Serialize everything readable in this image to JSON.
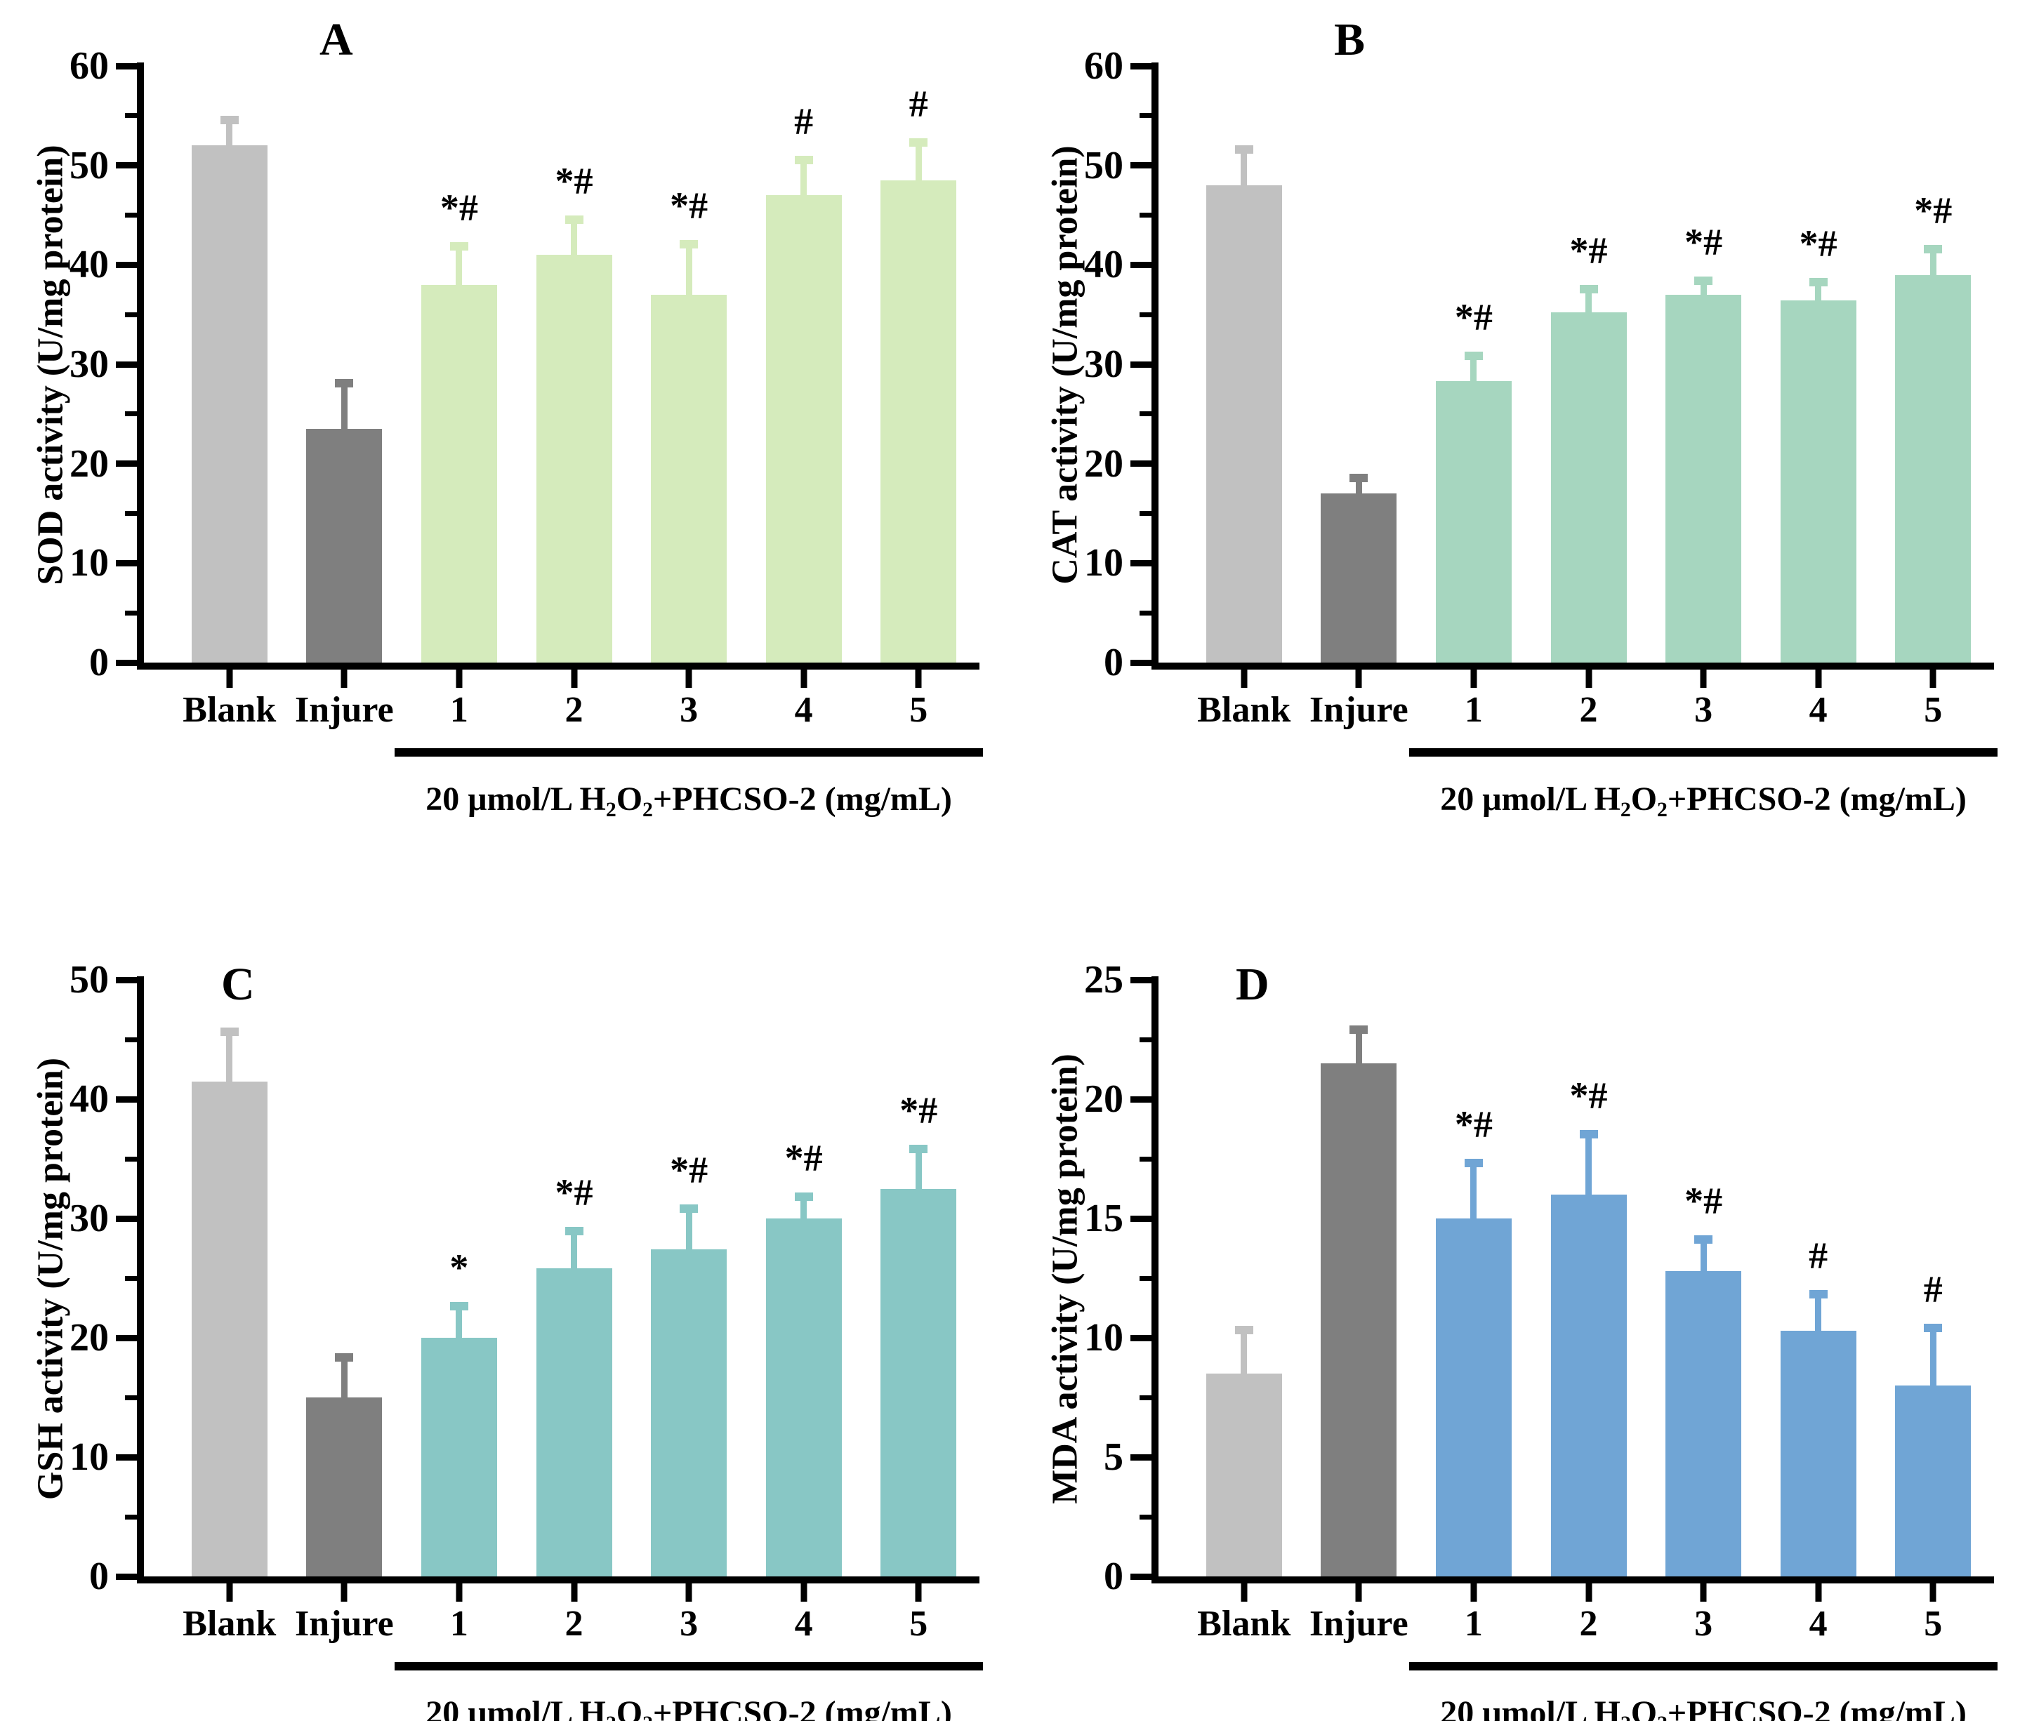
{
  "figure_title": "",
  "group_axis": {
    "label": "20 μmol/L H2O2+PHCSO-2 (mg/mL)",
    "label_parts": [
      [
        "20 μmol/L H",
        0
      ],
      [
        "2",
        1
      ],
      [
        "O",
        0
      ],
      [
        "2",
        1
      ],
      [
        "+PHCSO-2 (mg/mL)",
        0
      ]
    ],
    "span_categories": [
      "1",
      "5"
    ]
  },
  "colors": {
    "blank_bar": "#c1c1c1",
    "injure_bar": "#7f7f7f",
    "panel_a_bar": "#d5ebbc",
    "panel_b_bar": "#a6d6bf",
    "panel_c_bar": "#88c7c5",
    "panel_d_bar": "#70a5d5",
    "axis": "#000000"
  },
  "chart_data": [
    {
      "type": "bar",
      "panel_letter": "A",
      "title": "",
      "xlabel": "",
      "ylabel": "SOD activity (U/mg protein)",
      "ylim": [
        0,
        60
      ],
      "ytick_interval": 10,
      "yminor_interval": 5,
      "grid": false,
      "legend": "none",
      "categories": [
        "Blank",
        "Injure",
        "1",
        "2",
        "3",
        "4",
        "5"
      ],
      "values": [
        52,
        23.5,
        38,
        41,
        37,
        47,
        48.5
      ],
      "errors": [
        3,
        5,
        4.3,
        4,
        5.5,
        4,
        4.2
      ],
      "significance": [
        "",
        "",
        "*#",
        "*#",
        "*#",
        "#",
        "#"
      ],
      "bar_colors": [
        "#c1c1c1",
        "#7f7f7f",
        "#d5ebbc",
        "#d5ebbc",
        "#d5ebbc",
        "#d5ebbc",
        "#d5ebbc"
      ]
    },
    {
      "type": "bar",
      "panel_letter": "B",
      "title": "",
      "xlabel": "",
      "ylabel": "CAT activity (U/mg protein)",
      "ylim": [
        0,
        60
      ],
      "ytick_interval": 10,
      "yminor_interval": 5,
      "grid": false,
      "legend": "none",
      "categories": [
        "Blank",
        "Injure",
        "1",
        "2",
        "3",
        "4",
        "5"
      ],
      "values": [
        48,
        17,
        28.3,
        35.2,
        37,
        36.4,
        39
      ],
      "errors": [
        4,
        2,
        3,
        2.8,
        1.8,
        2.3,
        3
      ],
      "significance": [
        "",
        "",
        "*#",
        "*#",
        "*#",
        "*#",
        "*#"
      ],
      "bar_colors": [
        "#c1c1c1",
        "#7f7f7f",
        "#a6d6bf",
        "#a6d6bf",
        "#a6d6bf",
        "#a6d6bf",
        "#a6d6bf"
      ]
    },
    {
      "type": "bar",
      "panel_letter": "C",
      "title": "",
      "xlabel": "",
      "ylabel": "GSH activity (U/mg protein)",
      "ylim": [
        0,
        50
      ],
      "ytick_interval": 10,
      "yminor_interval": 5,
      "grid": false,
      "legend": "none",
      "categories": [
        "Blank",
        "Injure",
        "1",
        "2",
        "3",
        "4",
        "5"
      ],
      "values": [
        41.5,
        15,
        20,
        25.8,
        27.4,
        30,
        32.5
      ],
      "errors": [
        4.5,
        3.7,
        3,
        3.5,
        3.8,
        2.2,
        3.7
      ],
      "significance": [
        "",
        "",
        "*",
        "*#",
        "*#",
        "*#",
        "*#"
      ],
      "bar_colors": [
        "#c1c1c1",
        "#7f7f7f",
        "#88c7c5",
        "#88c7c5",
        "#88c7c5",
        "#88c7c5",
        "#88c7c5"
      ]
    },
    {
      "type": "bar",
      "panel_letter": "D",
      "title": "",
      "xlabel": "",
      "ylabel": "MDA activity (U/mg protein)",
      "ylim": [
        0,
        25
      ],
      "ytick_interval": 5,
      "yminor_interval": 2.5,
      "grid": false,
      "legend": "none",
      "categories": [
        "Blank",
        "Injure",
        "1",
        "2",
        "3",
        "4",
        "5"
      ],
      "values": [
        8.5,
        21.5,
        15,
        16,
        12.8,
        10.3,
        8
      ],
      "errors": [
        2,
        1.6,
        2.5,
        2.7,
        1.5,
        1.7,
        2.6
      ],
      "significance": [
        "",
        "",
        "*#",
        "*#",
        "*#",
        "#",
        "#"
      ],
      "bar_colors": [
        "#c1c1c1",
        "#7f7f7f",
        "#70a5d5",
        "#70a5d5",
        "#70a5d5",
        "#70a5d5",
        "#70a5d5"
      ]
    }
  ]
}
